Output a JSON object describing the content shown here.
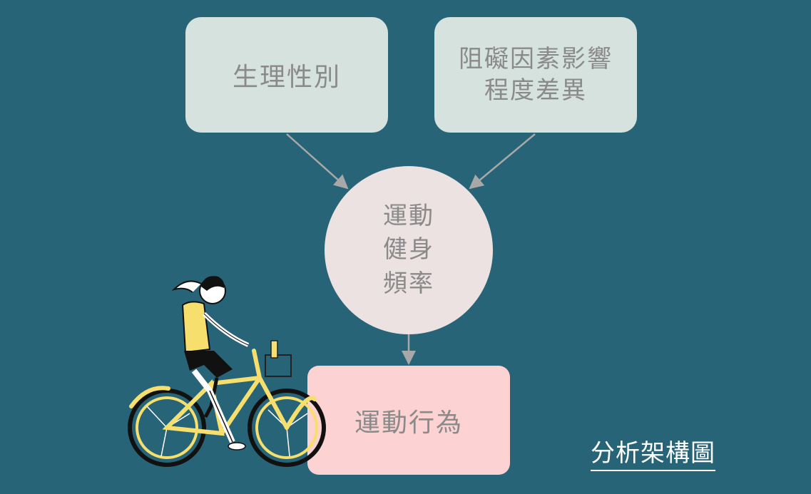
{
  "diagram": {
    "title": "分析架構圖",
    "nodes": {
      "gender": "生理性別",
      "barrier": "阻礙因素影響\n程度差異",
      "frequency": "運動\n健身\n頻率",
      "behavior": "運動行為"
    },
    "edges": [
      {
        "from": "gender",
        "to": "frequency"
      },
      {
        "from": "barrier",
        "to": "frequency"
      },
      {
        "from": "frequency",
        "to": "behavior"
      }
    ]
  },
  "colors": {
    "background": "#276478",
    "input_node": "#d6e2dd",
    "mediator_node": "#ede2e2",
    "outcome_node": "#fcd2d3",
    "arrow": "#a8a8a8",
    "text": "#8a8a8a",
    "accent_yellow": "#f7df6e"
  },
  "illustration": "woman-riding-bicycle"
}
